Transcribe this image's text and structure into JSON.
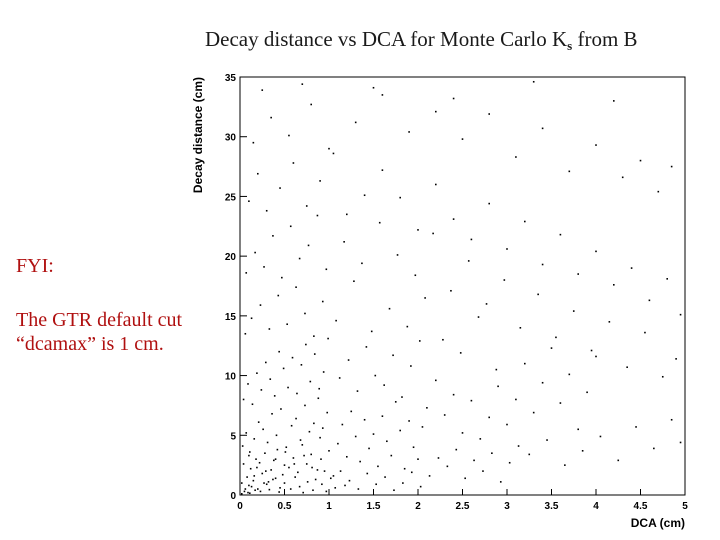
{
  "slide": {
    "title_main": "Decay distance vs DCA for Monte Carlo K",
    "title_sub": "s",
    "title_tail": " from B"
  },
  "notes": {
    "heading": "FYI:",
    "body": "The GTR default cut “dcamax” is 1 cm."
  },
  "chart_data": {
    "type": "scatter",
    "title": "",
    "xlabel": "DCA (cm)",
    "ylabel": "Decay distance (cm)",
    "xlim": [
      0,
      5
    ],
    "ylim": [
      0,
      35
    ],
    "xticks": [
      "0",
      "0.5",
      "1",
      "1.5",
      "2",
      "2.5",
      "3",
      "3.5",
      "4",
      "4.5",
      "5"
    ],
    "yticks": [
      "0",
      "5",
      "10",
      "15",
      "20",
      "25",
      "30",
      "35"
    ],
    "grid": false,
    "legend": "none",
    "point_color": "#000000",
    "points": [
      [
        0.05,
        0.3
      ],
      [
        0.1,
        0.8
      ],
      [
        0.15,
        1.2
      ],
      [
        0.2,
        0.5
      ],
      [
        0.25,
        1.8
      ],
      [
        0.3,
        0.9
      ],
      [
        0.35,
        2.1
      ],
      [
        0.4,
        1.4
      ],
      [
        0.45,
        0.6
      ],
      [
        0.5,
        2.5
      ],
      [
        0.08,
        1.5
      ],
      [
        0.12,
        2.2
      ],
      [
        0.18,
        3.0
      ],
      [
        0.22,
        2.7
      ],
      [
        0.28,
        3.5
      ],
      [
        0.32,
        1.1
      ],
      [
        0.38,
        2.9
      ],
      [
        0.42,
        3.8
      ],
      [
        0.48,
        1.7
      ],
      [
        0.55,
        2.3
      ],
      [
        0.6,
        3.1
      ],
      [
        0.65,
        1.9
      ],
      [
        0.7,
        4.2
      ],
      [
        0.75,
        2.6
      ],
      [
        0.8,
        3.4
      ],
      [
        0.85,
        1.3
      ],
      [
        0.9,
        4.8
      ],
      [
        0.95,
        2.0
      ],
      [
        1.0,
        3.7
      ],
      [
        1.05,
        1.6
      ],
      [
        0.03,
        4.1
      ],
      [
        0.07,
        5.2
      ],
      [
        0.11,
        3.6
      ],
      [
        0.16,
        4.7
      ],
      [
        0.21,
        6.1
      ],
      [
        0.26,
        5.5
      ],
      [
        0.31,
        4.4
      ],
      [
        0.36,
        6.8
      ],
      [
        0.41,
        5.0
      ],
      [
        0.46,
        7.2
      ],
      [
        0.52,
        4.0
      ],
      [
        0.58,
        5.8
      ],
      [
        0.63,
        6.4
      ],
      [
        0.68,
        4.6
      ],
      [
        0.73,
        7.5
      ],
      [
        0.78,
        5.3
      ],
      [
        0.83,
        6.0
      ],
      [
        0.88,
        8.1
      ],
      [
        0.93,
        5.6
      ],
      [
        0.98,
        6.9
      ],
      [
        1.1,
        4.3
      ],
      [
        1.15,
        5.9
      ],
      [
        1.2,
        3.2
      ],
      [
        1.25,
        7.0
      ],
      [
        1.3,
        4.9
      ],
      [
        1.35,
        2.8
      ],
      [
        1.4,
        6.3
      ],
      [
        1.45,
        3.9
      ],
      [
        1.5,
        5.1
      ],
      [
        1.55,
        2.4
      ],
      [
        1.6,
        6.6
      ],
      [
        1.65,
        4.5
      ],
      [
        1.7,
        3.3
      ],
      [
        1.75,
        7.8
      ],
      [
        1.8,
        5.4
      ],
      [
        1.85,
        2.2
      ],
      [
        1.9,
        6.2
      ],
      [
        1.95,
        4.0
      ],
      [
        2.0,
        3.0
      ],
      [
        2.05,
        5.7
      ],
      [
        0.04,
        8.0
      ],
      [
        0.09,
        9.3
      ],
      [
        0.14,
        7.6
      ],
      [
        0.19,
        10.2
      ],
      [
        0.24,
        8.8
      ],
      [
        0.29,
        11.1
      ],
      [
        0.34,
        9.7
      ],
      [
        0.39,
        8.3
      ],
      [
        0.44,
        12.0
      ],
      [
        0.49,
        10.6
      ],
      [
        0.54,
        9.0
      ],
      [
        0.59,
        11.5
      ],
      [
        0.64,
        8.5
      ],
      [
        0.69,
        10.9
      ],
      [
        0.74,
        12.6
      ],
      [
        0.79,
        9.5
      ],
      [
        0.84,
        11.8
      ],
      [
        0.89,
        8.9
      ],
      [
        0.94,
        10.3
      ],
      [
        0.99,
        13.1
      ],
      [
        1.12,
        9.8
      ],
      [
        1.22,
        11.3
      ],
      [
        1.32,
        8.7
      ],
      [
        1.42,
        12.4
      ],
      [
        1.52,
        10.0
      ],
      [
        1.62,
        9.2
      ],
      [
        1.72,
        11.7
      ],
      [
        1.82,
        8.2
      ],
      [
        1.92,
        10.8
      ],
      [
        2.02,
        12.9
      ],
      [
        2.1,
        7.3
      ],
      [
        2.2,
        9.6
      ],
      [
        2.3,
        6.7
      ],
      [
        2.4,
        8.4
      ],
      [
        2.5,
        5.2
      ],
      [
        2.6,
        7.9
      ],
      [
        2.7,
        4.7
      ],
      [
        2.8,
        6.5
      ],
      [
        2.9,
        9.1
      ],
      [
        3.0,
        5.9
      ],
      [
        0.06,
        13.5
      ],
      [
        0.13,
        14.8
      ],
      [
        0.23,
        15.9
      ],
      [
        0.33,
        13.9
      ],
      [
        0.43,
        16.7
      ],
      [
        0.53,
        14.3
      ],
      [
        0.63,
        17.4
      ],
      [
        0.73,
        15.2
      ],
      [
        0.83,
        13.3
      ],
      [
        0.93,
        16.2
      ],
      [
        1.08,
        14.6
      ],
      [
        1.28,
        17.9
      ],
      [
        1.48,
        13.7
      ],
      [
        1.68,
        15.6
      ],
      [
        1.88,
        14.1
      ],
      [
        2.08,
        16.5
      ],
      [
        2.28,
        13.0
      ],
      [
        2.48,
        11.9
      ],
      [
        2.68,
        14.9
      ],
      [
        2.88,
        10.5
      ],
      [
        3.1,
        8.0
      ],
      [
        3.2,
        11.0
      ],
      [
        3.3,
        6.9
      ],
      [
        3.4,
        9.4
      ],
      [
        3.5,
        12.3
      ],
      [
        3.6,
        7.7
      ],
      [
        3.7,
        10.1
      ],
      [
        3.8,
        5.5
      ],
      [
        3.9,
        8.6
      ],
      [
        4.0,
        11.6
      ],
      [
        0.07,
        18.6
      ],
      [
        0.17,
        20.3
      ],
      [
        0.27,
        19.1
      ],
      [
        0.37,
        21.7
      ],
      [
        0.47,
        18.2
      ],
      [
        0.57,
        22.5
      ],
      [
        0.67,
        19.8
      ],
      [
        0.77,
        20.9
      ],
      [
        0.87,
        23.4
      ],
      [
        0.97,
        18.9
      ],
      [
        1.17,
        21.2
      ],
      [
        1.37,
        19.4
      ],
      [
        1.57,
        22.8
      ],
      [
        1.77,
        20.1
      ],
      [
        1.97,
        18.4
      ],
      [
        2.17,
        21.9
      ],
      [
        2.37,
        17.1
      ],
      [
        2.57,
        19.6
      ],
      [
        2.77,
        16.0
      ],
      [
        2.97,
        18.0
      ],
      [
        3.15,
        14.0
      ],
      [
        3.35,
        16.8
      ],
      [
        3.55,
        13.2
      ],
      [
        3.75,
        15.4
      ],
      [
        3.95,
        12.1
      ],
      [
        4.15,
        14.5
      ],
      [
        4.35,
        10.7
      ],
      [
        4.55,
        13.6
      ],
      [
        4.75,
        9.9
      ],
      [
        4.9,
        11.4
      ],
      [
        0.1,
        24.6
      ],
      [
        0.2,
        26.9
      ],
      [
        0.3,
        23.8
      ],
      [
        0.45,
        25.7
      ],
      [
        0.6,
        27.8
      ],
      [
        0.75,
        24.2
      ],
      [
        0.9,
        26.3
      ],
      [
        1.05,
        28.6
      ],
      [
        1.2,
        23.5
      ],
      [
        1.4,
        25.1
      ],
      [
        1.6,
        27.2
      ],
      [
        1.8,
        24.9
      ],
      [
        2.0,
        22.2
      ],
      [
        2.2,
        26.0
      ],
      [
        2.4,
        23.1
      ],
      [
        2.6,
        21.4
      ],
      [
        2.8,
        24.4
      ],
      [
        3.0,
        20.6
      ],
      [
        3.2,
        22.9
      ],
      [
        3.4,
        19.3
      ],
      [
        3.6,
        21.8
      ],
      [
        3.8,
        18.5
      ],
      [
        4.0,
        20.4
      ],
      [
        4.2,
        17.6
      ],
      [
        4.4,
        19.0
      ],
      [
        4.6,
        16.3
      ],
      [
        4.8,
        18.1
      ],
      [
        4.95,
        15.1
      ],
      [
        0.15,
        29.5
      ],
      [
        0.35,
        31.6
      ],
      [
        0.55,
        30.1
      ],
      [
        0.8,
        32.7
      ],
      [
        1.0,
        29.0
      ],
      [
        1.3,
        31.2
      ],
      [
        1.6,
        33.5
      ],
      [
        1.9,
        30.4
      ],
      [
        2.2,
        32.1
      ],
      [
        2.5,
        29.8
      ],
      [
        2.8,
        31.9
      ],
      [
        3.1,
        28.3
      ],
      [
        3.4,
        30.7
      ],
      [
        3.7,
        27.1
      ],
      [
        4.0,
        29.3
      ],
      [
        4.3,
        26.6
      ],
      [
        4.5,
        28.0
      ],
      [
        4.7,
        25.4
      ],
      [
        4.85,
        27.5
      ],
      [
        0.25,
        33.9
      ],
      [
        0.7,
        34.4
      ],
      [
        1.5,
        34.1
      ],
      [
        2.4,
        33.2
      ],
      [
        3.3,
        34.6
      ],
      [
        4.2,
        33.0
      ],
      [
        0.02,
        0.1
      ],
      [
        0.06,
        0.5
      ],
      [
        0.09,
        0.2
      ],
      [
        0.13,
        0.7
      ],
      [
        0.17,
        0.4
      ],
      [
        0.02,
        1.0
      ],
      [
        0.11,
        0.15
      ],
      [
        0.16,
        1.6
      ],
      [
        0.23,
        0.3
      ],
      [
        0.27,
        1.0
      ],
      [
        0.33,
        0.45
      ],
      [
        0.37,
        1.3
      ],
      [
        0.44,
        0.25
      ],
      [
        0.5,
        1.0
      ],
      [
        0.57,
        0.5
      ],
      [
        0.62,
        1.5
      ],
      [
        0.67,
        0.7
      ],
      [
        0.71,
        0.2
      ],
      [
        0.76,
        1.1
      ],
      [
        0.82,
        0.4
      ],
      [
        0.87,
        2.1
      ],
      [
        0.92,
        0.9
      ],
      [
        0.97,
        0.3
      ],
      [
        1.02,
        1.4
      ],
      [
        1.07,
        0.6
      ],
      [
        1.13,
        2.0
      ],
      [
        1.18,
        0.8
      ],
      [
        0.04,
        2.6
      ],
      [
        0.1,
        3.3
      ],
      [
        0.19,
        2.3
      ],
      [
        0.29,
        2.0
      ],
      [
        0.4,
        3.0
      ],
      [
        0.51,
        3.6
      ],
      [
        0.61,
        2.6
      ],
      [
        0.72,
        3.3
      ],
      [
        0.81,
        2.3
      ],
      [
        0.91,
        3.0
      ],
      [
        1.23,
        1.2
      ],
      [
        1.33,
        0.5
      ],
      [
        1.43,
        1.8
      ],
      [
        1.53,
        0.9
      ],
      [
        1.63,
        1.5
      ],
      [
        1.73,
        0.4
      ],
      [
        1.83,
        1.0
      ],
      [
        1.93,
        1.9
      ],
      [
        2.03,
        0.7
      ],
      [
        2.13,
        1.6
      ],
      [
        2.23,
        3.1
      ],
      [
        2.33,
        2.4
      ],
      [
        2.43,
        3.8
      ],
      [
        2.53,
        1.4
      ],
      [
        2.63,
        2.9
      ],
      [
        2.73,
        2.0
      ],
      [
        2.83,
        3.5
      ],
      [
        2.93,
        1.1
      ],
      [
        3.03,
        2.7
      ],
      [
        3.13,
        4.1
      ],
      [
        3.25,
        3.4
      ],
      [
        3.45,
        4.6
      ],
      [
        3.65,
        2.5
      ],
      [
        3.85,
        3.7
      ],
      [
        4.05,
        4.9
      ],
      [
        4.25,
        2.9
      ],
      [
        4.45,
        5.7
      ],
      [
        4.65,
        3.9
      ],
      [
        4.85,
        6.3
      ],
      [
        4.95,
        4.4
      ]
    ]
  }
}
